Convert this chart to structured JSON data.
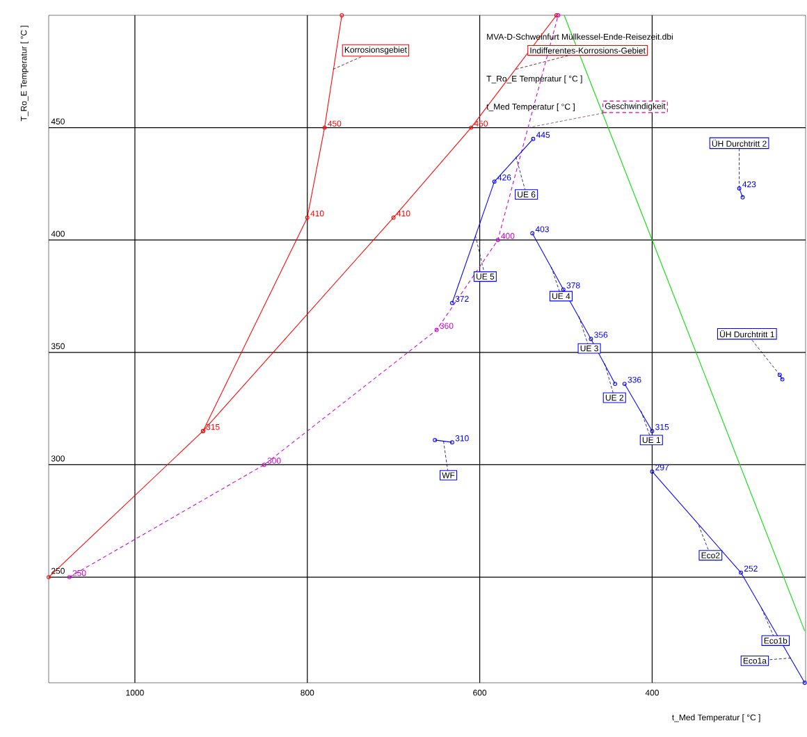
{
  "chart_data": {
    "type": "line",
    "title": "MVA-D-Schweinfurt Müllkessel-Ende-Reisezeit.dbi",
    "xlabel": "t_Med Temperatur [ °C ]",
    "ylabel": "T_Ro_E Temperatur [ °C ]",
    "xlim": [
      1100,
      222
    ],
    "ylim": [
      203,
      500
    ],
    "xticks": [
      1000,
      800,
      600,
      400
    ],
    "yticks": [
      250,
      300,
      350,
      400,
      450
    ],
    "grid": true,
    "marker": "circle",
    "series": [
      {
        "color": "#ff0000",
        "x": [
          921,
          800,
          780,
          760
        ],
        "values": [
          315,
          410,
          450,
          500
        ],
        "value_labels": [
          "315",
          "410",
          "450",
          null
        ]
      },
      {
        "color": "#ff0000",
        "x": [
          1100,
          921,
          700,
          610,
          511
        ],
        "values": [
          250,
          315,
          410,
          450,
          500
        ],
        "value_labels": [
          null,
          null,
          "410",
          "450",
          null
        ]
      },
      {
        "color": "#cc00cc",
        "line_style": "dashed",
        "x": [
          1076,
          850,
          650,
          579,
          509
        ],
        "values": [
          250,
          300,
          360,
          400,
          500
        ],
        "value_labels": [
          "250",
          "300",
          "360",
          "400",
          null
        ]
      },
      {
        "color": "#00dd00",
        "marker": "none",
        "x": [
          502,
          400,
          223
        ],
        "values": [
          500,
          400,
          226
        ]
      },
      {
        "color": "#0000ff",
        "x": [
          632,
          583,
          538
        ],
        "values": [
          372,
          426,
          445
        ],
        "value_labels": [
          "372",
          "426",
          "445"
        ]
      },
      {
        "color": "#0000ff",
        "x": [
          539,
          503,
          471,
          443
        ],
        "values": [
          403,
          378,
          356,
          336
        ],
        "value_labels": [
          "403",
          "378",
          "356",
          null
        ]
      },
      {
        "color": "#0000ff",
        "x": [
          432,
          400
        ],
        "values": [
          336,
          315
        ],
        "value_labels": [
          "336",
          "315"
        ]
      },
      {
        "color": "#0000ff",
        "x": [
          400,
          297,
          223
        ],
        "values": [
          297,
          252,
          203
        ],
        "value_labels": [
          "297",
          "252",
          null
        ]
      },
      {
        "color": "#0000ff",
        "x": [
          652,
          632
        ],
        "values": [
          311,
          310
        ],
        "value_labels": [
          null,
          "310"
        ]
      },
      {
        "color": "#0000ff",
        "x": [
          299,
          295
        ],
        "values": [
          423,
          419
        ],
        "value_labels": [
          "423",
          null
        ]
      },
      {
        "color": "#0000ff",
        "x": [
          252,
          249
        ],
        "values": [
          340,
          338
        ]
      }
    ],
    "annotations": [
      "T_Ro_E Temperatur [ °C ]",
      "t_Med Temperatur [ °C ]",
      {
        "text": "Korrosionsgebiet",
        "x": 770,
        "y": 476
      },
      {
        "text": "Indifferentes-Korrosions-Gebiet",
        "x": 558,
        "y": 476
      },
      {
        "text": "Geschwindigkeit",
        "x": 544,
        "y": 450
      },
      {
        "text": "UE 6",
        "x": 558,
        "y": 437
      },
      {
        "text": "UE 5",
        "x": 605,
        "y": 402
      },
      {
        "text": "UE 4",
        "x": 517,
        "y": 388
      },
      {
        "text": "UE 3",
        "x": 485,
        "y": 366
      },
      {
        "text": "UE 2",
        "x": 455,
        "y": 345
      },
      {
        "text": "UE 1",
        "x": 413,
        "y": 324
      },
      {
        "text": "WF",
        "x": 642,
        "y": 310.5
      },
      {
        "text": "Eco2",
        "x": 346,
        "y": 273
      },
      {
        "text": "Eco1b",
        "x": 273,
        "y": 236
      },
      {
        "text": "Eco1a",
        "x": 239,
        "y": 214
      },
      {
        "text": "ÜH Durchtritt 2",
        "x": 299,
        "y": 423
      },
      {
        "text": "ÜH Durchtritt 1",
        "x": 252,
        "y": 340
      }
    ]
  }
}
